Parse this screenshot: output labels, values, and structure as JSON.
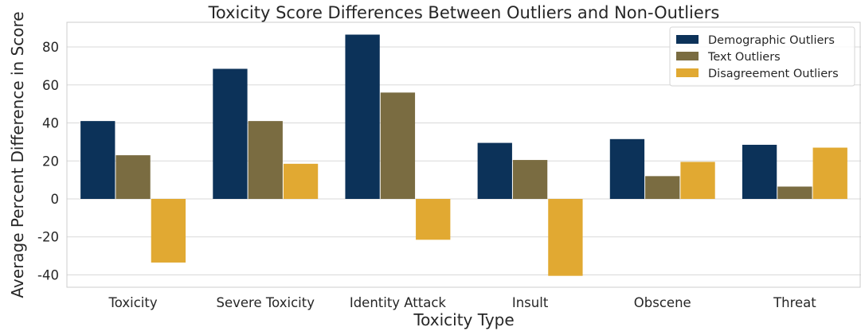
{
  "chart_data": {
    "type": "bar",
    "title": "Toxicity Score Differences Between Outliers and Non-Outliers",
    "xlabel": "Toxicity Type",
    "ylabel": "Average Percent Difference in Score",
    "categories": [
      "Toxicity",
      "Severe Toxicity",
      "Identity Attack",
      "Insult",
      "Obscene",
      "Threat"
    ],
    "series": [
      {
        "name": "Demographic Outliers",
        "color": "#0c3259",
        "values": [
          41,
          68.5,
          86.5,
          29.5,
          31.5,
          28.5
        ]
      },
      {
        "name": "Text Outliers",
        "color": "#7a6c41",
        "values": [
          23,
          41,
          56,
          20.5,
          12,
          6.5
        ]
      },
      {
        "name": "Disagreement Outliers",
        "color": "#e1a932",
        "values": [
          -33.5,
          18.5,
          -21.5,
          -40.5,
          19.5,
          27
        ]
      }
    ],
    "ylim": [
      -46.5,
      93
    ],
    "yticks": [
      "-40",
      "-20",
      "0",
      "20",
      "40",
      "60",
      "80"
    ],
    "grid": true,
    "legend_position": "top-right"
  }
}
